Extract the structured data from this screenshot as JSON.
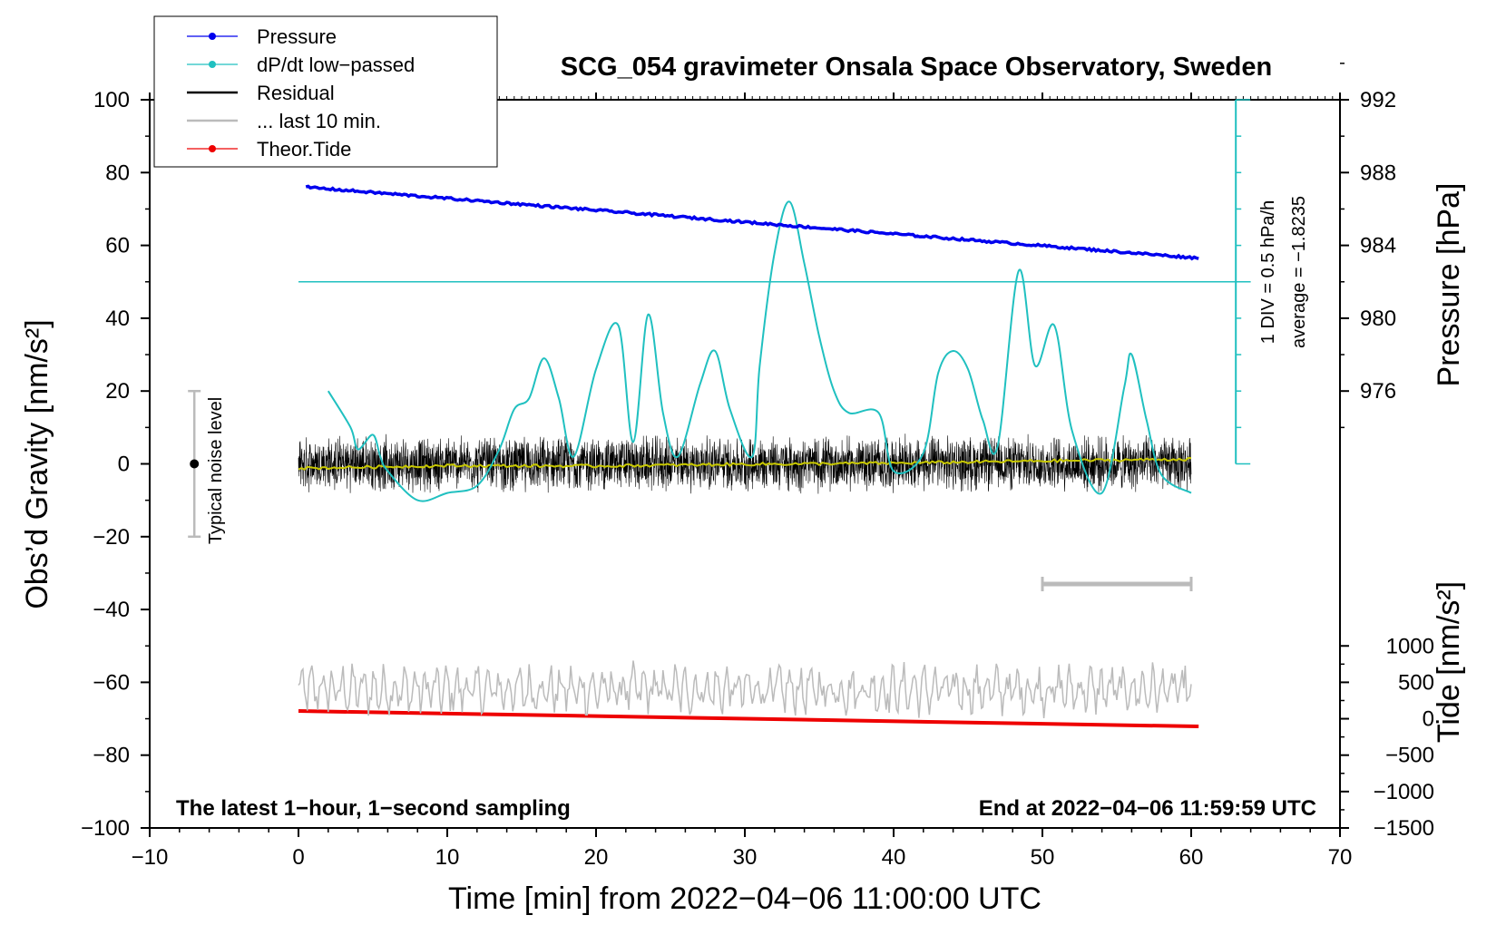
{
  "chart_data": {
    "type": "line",
    "title": "SCG_054 gravimeter Onsala Space Observatory, Sweden",
    "xlabel": "Time [min] from 2022−04−06 11:00:00 UTC",
    "ylabel_left": "Obs’d Gravity [nm/s²]",
    "ylabel_pressure": "Pressure [hPa]",
    "ylabel_tide": "Tide [nm/s²]",
    "xlim": [
      -10,
      70
    ],
    "ylim_left": [
      -100,
      100
    ],
    "x_ticks": [
      "−10",
      "0",
      "10",
      "20",
      "30",
      "40",
      "50",
      "60",
      "70"
    ],
    "x_tick_values": [
      -10,
      0,
      10,
      20,
      30,
      40,
      50,
      60,
      70
    ],
    "y_left_ticks": [
      "100",
      "80",
      "60",
      "40",
      "20",
      "0",
      "−20",
      "−40",
      "−60",
      "−80",
      "−100"
    ],
    "y_left_tick_values": [
      100,
      80,
      60,
      40,
      20,
      0,
      -20,
      -40,
      -60,
      -80,
      -100
    ],
    "pressure_ticks": [
      "992",
      "988",
      "984",
      "980",
      "976"
    ],
    "pressure_tick_values": [
      992,
      988,
      984,
      980,
      976
    ],
    "pressure_axis": {
      "hpa_at_gravity_0": 972,
      "hpa_per_nm_s2": 0.2
    },
    "tide_ticks": [
      "1000",
      "500",
      "0",
      "−500",
      "−1000",
      "−1500"
    ],
    "tide_tick_values": [
      1000,
      500,
      0,
      -500,
      -1000,
      -1500
    ],
    "tide_axis": {
      "tide_at_gravity_minus_100": -1500,
      "tide_per_nm_s2": 50
    },
    "legend": [
      {
        "label": "Pressure",
        "color": "#0000ee",
        "marker": true
      },
      {
        "label": "dP/dt low−passed",
        "color": "#20c0c0",
        "marker": true
      },
      {
        "label": "Residual",
        "color": "#000000",
        "marker": false
      },
      {
        "label": "... last 10 min.",
        "color": "#bbbbbb",
        "marker": false
      },
      {
        "label": "Theor.Tide",
        "color": "#ee0000",
        "marker": true
      }
    ],
    "series": [
      {
        "name": "Pressure",
        "color": "#0000ee",
        "axis": "pressure",
        "x": [
          0.5,
          60.5
        ],
        "values": [
          987.2,
          983.3
        ]
      },
      {
        "name": "dP/dt low−passed",
        "color": "#20c0c0",
        "axis": "gravity",
        "x": [
          2,
          3.5,
          4,
          5,
          5.5,
          6,
          8,
          10,
          12,
          13.5,
          14.5,
          15.5,
          16.5,
          17.5,
          18.5,
          20,
          21.5,
          22.5,
          23.5,
          24.5,
          25.5,
          27,
          28,
          29,
          30.5,
          31,
          32,
          33,
          34,
          35,
          36,
          37,
          39,
          40,
          42,
          43,
          44,
          45,
          46,
          47,
          48.4,
          49.5,
          50.8,
          52,
          54,
          55.5,
          56,
          57,
          58,
          60
        ],
        "values": [
          20,
          10,
          4,
          8,
          2,
          -2,
          -10,
          -8,
          -6,
          4,
          15,
          18,
          29,
          18,
          2,
          26,
          38,
          6,
          41,
          14,
          2,
          22,
          31,
          15,
          2,
          27,
          58,
          72,
          55,
          35,
          20,
          14,
          14,
          -2,
          3,
          25,
          31,
          26,
          12,
          5,
          53,
          27,
          38,
          9,
          -8,
          21,
          30,
          12,
          -3,
          -8
        ]
      },
      {
        "name": "Residual",
        "color": "#000000",
        "axis": "gravity",
        "x": [
          0,
          60
        ],
        "values": [
          0,
          0
        ],
        "noise_amplitude": 7
      },
      {
        "name": "Residual (smoothed)",
        "color": "#c8c800",
        "axis": "gravity",
        "x": [
          0,
          10,
          20,
          30,
          40,
          50,
          60
        ],
        "values": [
          -1.2,
          -0.5,
          -0.6,
          -0.1,
          0.2,
          0.8,
          1.3
        ]
      },
      {
        "name": "... last 10 min.",
        "color": "#bbbbbb",
        "axis": "gravity",
        "x": [
          0,
          60
        ],
        "center": -62,
        "amplitude": 7
      },
      {
        "name": "Theor.Tide",
        "color": "#ee0000",
        "axis": "tide",
        "x": [
          0,
          60.5
        ],
        "values": [
          106,
          -106
        ]
      }
    ],
    "average_line": {
      "gravity_value": 50,
      "x_range": [
        0,
        64
      ]
    },
    "scale_bar": {
      "x": 63,
      "gravity_range": [
        0,
        100
      ],
      "tick_step": 10
    },
    "scale_label": "1 DIV = 0.5 hPa/h",
    "average_label": "average = −1.8235",
    "noise_bar": {
      "x": -7,
      "range": [
        -20,
        20
      ],
      "label": "Typical noise level"
    },
    "gray_segment": {
      "x_range": [
        50,
        60
      ],
      "gravity_value": -33
    },
    "annotation_left": "The latest 1−hour, 1−second sampling",
    "annotation_right": "End at 2022−04−06 11:59:59 UTC"
  }
}
